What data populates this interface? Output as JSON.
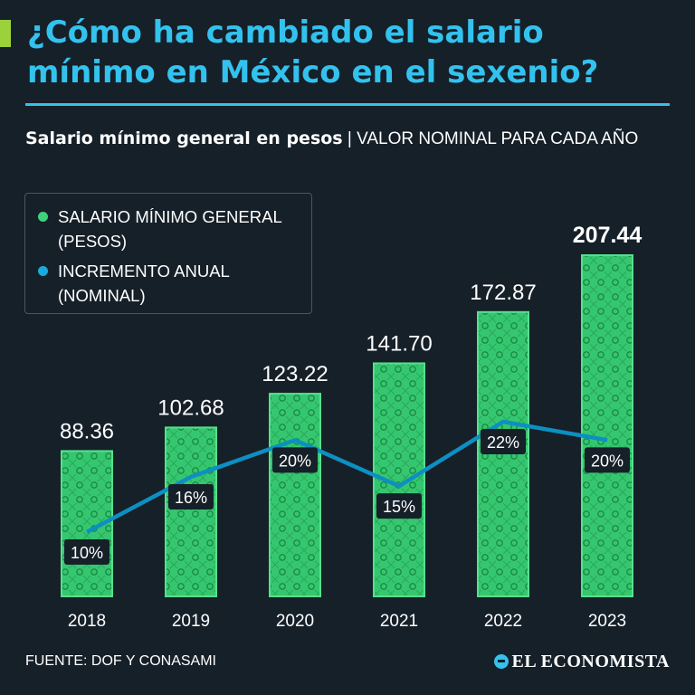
{
  "title": "¿Cómo ha cambiado el salario mínimo en México en el sexenio?",
  "subtitle": {
    "bold": "Salario mínimo general en pesos",
    "light": " | VALOR NOMINAL PARA CADA AÑO"
  },
  "legend": {
    "salary": "SALARIO MÍNIMO GENERAL (PESOS)",
    "increase": "INCREMENTO ANUAL (NOMINAL)"
  },
  "colors": {
    "accent": "#33c2ee",
    "bar": "#3ed27a",
    "bar_dark": "#1f9a4e",
    "lime": "#9bd13a",
    "line": "#0d8fc2"
  },
  "chart_data": {
    "type": "bar",
    "categories": [
      "2018",
      "2019",
      "2020",
      "2021",
      "2022",
      "2023"
    ],
    "series": [
      {
        "name": "SALARIO MÍNIMO GENERAL (PESOS)",
        "values": [
          88.36,
          102.68,
          123.22,
          141.7,
          172.87,
          207.44
        ],
        "labels": [
          "88.36",
          "102.68",
          "123.22",
          "141.70",
          "172.87",
          "207.44"
        ]
      },
      {
        "name": "INCREMENTO ANUAL (NOMINAL)",
        "type": "line",
        "values": [
          10,
          16,
          20,
          15,
          22,
          20
        ],
        "labels": [
          "10%",
          "16%",
          "20%",
          "15%",
          "22%",
          "20%"
        ]
      }
    ],
    "title": "Salario mínimo general en pesos",
    "ylim": [
      0,
      220
    ]
  },
  "footer": {
    "source": "FUENTE: DOF Y CONASAMI",
    "logo": "EL ECONOMISTA"
  }
}
